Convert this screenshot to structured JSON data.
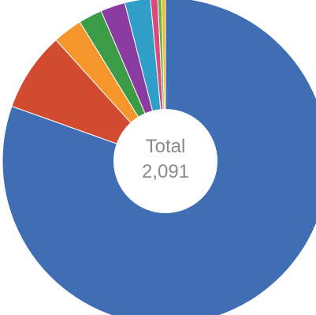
{
  "chart_data": {
    "type": "pie",
    "style": "donut",
    "center_label": "Total",
    "center_value": "2,091",
    "total": 2091,
    "slices": [
      {
        "value": 1682,
        "color": "#3f6eb5"
      },
      {
        "value": 164,
        "color": "#d24a2f"
      },
      {
        "value": 61,
        "color": "#f6962a"
      },
      {
        "value": 49,
        "color": "#3c9c45"
      },
      {
        "value": 51,
        "color": "#8a3ca0"
      },
      {
        "value": 53,
        "color": "#2f9ec8"
      },
      {
        "value": 15,
        "color": "#d94a7d"
      },
      {
        "value": 8,
        "color": "#69b13f"
      },
      {
        "value": 8,
        "color": "#f2b824"
      }
    ],
    "start_angle_deg": 0,
    "direction": "clockwise"
  }
}
